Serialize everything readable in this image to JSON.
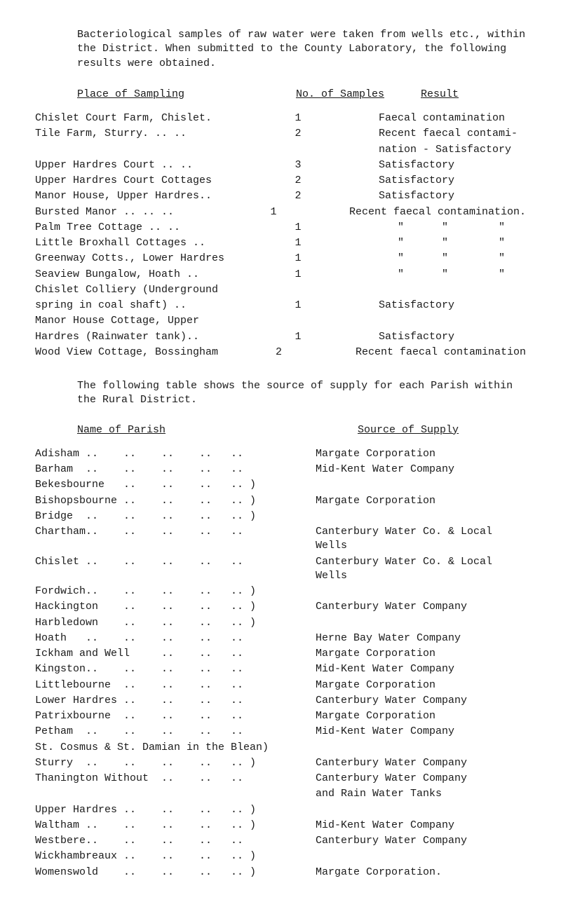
{
  "intro": "Bacteriological samples of raw water were taken from wells etc., within the District.  When submitted to the County Laboratory, the following results were obtained.",
  "table1": {
    "headers": {
      "place": "Place of Sampling",
      "num": "No. of Samples",
      "result": "Result"
    },
    "rows": [
      {
        "place": "Chislet Court Farm, Chislet.",
        "num": "1",
        "result": "Faecal contamination"
      },
      {
        "place": "Tile Farm, Sturry.   ..  ..",
        "num": "2",
        "result": "Recent faecal contami-"
      },
      {
        "place": "",
        "num": "",
        "result": "nation - Satisfactory"
      },
      {
        "place": "Upper Hardres Court  ..  ..",
        "num": "3",
        "result": "Satisfactory"
      },
      {
        "place": "Upper Hardres Court Cottages",
        "num": "2",
        "result": "Satisfactory"
      },
      {
        "place": "Manor House, Upper Hardres..",
        "num": "2",
        "result": "Satisfactory"
      },
      {
        "place": "Bursted Manor   ..  ..  ..",
        "num": "1",
        "result": "Recent faecal contamination."
      },
      {
        "place": "Palm Tree Cottage    ..  ..",
        "num": "1",
        "result": "   \"      \"        \""
      },
      {
        "place": "Little Broxhall Cottages  ..",
        "num": "1",
        "result": "   \"      \"        \""
      },
      {
        "place": "Greenway Cotts., Lower Hardres",
        "num": "1",
        "result": "   \"      \"        \""
      },
      {
        "place": "Seaview Bungalow, Hoath   ..",
        "num": "1",
        "result": "   \"      \"        \""
      },
      {
        "place": "Chislet Colliery (Underground",
        "num": "",
        "result": ""
      },
      {
        "place": "  spring in coal shaft)   ..",
        "num": "1",
        "result": "Satisfactory"
      },
      {
        "place": "Manor House Cottage, Upper",
        "num": "",
        "result": ""
      },
      {
        "place": "  Hardres (Rainwater tank)..",
        "num": "1",
        "result": "Satisfactory"
      },
      {
        "place": "Wood View Cottage,  Bossingham",
        "num": "2",
        "result": "Recent faecal contamination"
      }
    ]
  },
  "midpara": "The following table shows the source of supply for each Parish within the Rural District.",
  "table2": {
    "headers": {
      "name": "Name of Parish",
      "source": "Source of Supply"
    },
    "rows": [
      {
        "name": "Adisham ..    ..    ..    ..   ..",
        "source": "Margate Corporation"
      },
      {
        "name": "Barham  ..    ..    ..    ..   ..",
        "source": "Mid-Kent Water Company"
      },
      {
        "name": "Bekesbourne   ..    ..    ..   .. )",
        "source": ""
      },
      {
        "name": "Bishopsbourne ..    ..    ..   .. )",
        "source": "Margate  Corporation"
      },
      {
        "name": "Bridge  ..    ..    ..    ..   .. )",
        "source": ""
      },
      {
        "name": "Chartham..    ..    ..    ..   ..",
        "source": "Canterbury Water Co. & Local Wells"
      },
      {
        "name": "Chislet ..    ..    ..    ..   ..",
        "source": "Canterbury Water Co. & Local Wells"
      },
      {
        "name": "Fordwich..    ..    ..    ..   .. )",
        "source": ""
      },
      {
        "name": "Hackington    ..    ..    ..   .. )",
        "source": "Canterbury Water Company"
      },
      {
        "name": "Harbledown    ..    ..    ..   .. )",
        "source": ""
      },
      {
        "name": "Hoath   ..    ..    ..    ..   ..",
        "source": "Herne Bay Water  Company"
      },
      {
        "name": "Ickham and Well     ..    ..   ..",
        "source": "Margate Corporation"
      },
      {
        "name": "Kingston..    ..    ..    ..   ..",
        "source": "Mid-Kent Water Company"
      },
      {
        "name": "Littlebourne  ..    ..    ..   ..",
        "source": "Margate Corporation"
      },
      {
        "name": "Lower Hardres ..    ..    ..   ..",
        "source": "Canterbury Water Company"
      },
      {
        "name": "Patrixbourne  ..    ..    ..   ..",
        "source": "Margate Corporation"
      },
      {
        "name": "Petham  ..    ..    ..    ..   ..",
        "source": "Mid-Kent Water Company"
      },
      {
        "name": "St. Cosmus & St. Damian in the Blean)",
        "source": ""
      },
      {
        "name": "Sturry  ..    ..    ..    ..   .. )",
        "source": "Canterbury Water Company"
      },
      {
        "name": "Thanington Without  ..    ..   ..",
        "source": "Canterbury Water Company"
      },
      {
        "name": "",
        "source": "  and Rain Water Tanks"
      },
      {
        "name": "Upper Hardres ..    ..    ..   .. )",
        "source": ""
      },
      {
        "name": "Waltham ..    ..    ..    ..   .. )",
        "source": "Mid-Kent Water Company"
      },
      {
        "name": "Westbere..    ..    ..    ..   ..",
        "source": "Canterbury Water Company"
      },
      {
        "name": "Wickhambreaux ..    ..    ..   .. )",
        "source": ""
      },
      {
        "name": "Womenswold    ..    ..    ..   .. )",
        "source": "Margate Corporation."
      }
    ]
  }
}
